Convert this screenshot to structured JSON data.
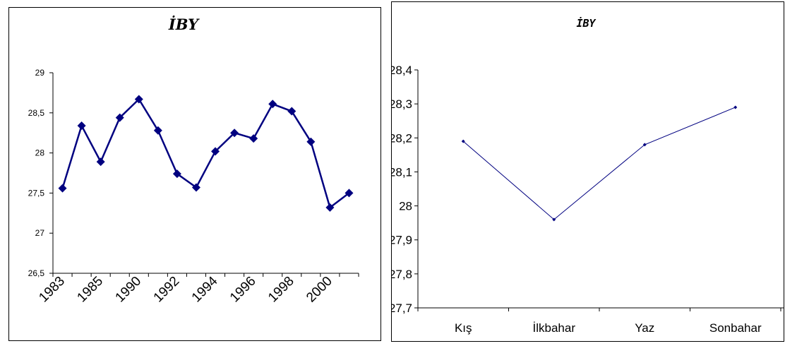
{
  "chart_data": [
    {
      "type": "line",
      "title": "İBY",
      "xlabel": "",
      "ylabel": "",
      "ylim": [
        26.5,
        29
      ],
      "yticks": [
        "26,5",
        "27",
        "27,5",
        "28",
        "28,5",
        "29"
      ],
      "x_tick_labels": [
        "1983",
        "1985",
        "1990",
        "1992",
        "1994",
        "1996",
        "1998",
        "2000"
      ],
      "grid": false,
      "legend": "none",
      "color": "#000080",
      "marker": "diamond",
      "series": [
        {
          "values": [
            27.56,
            28.34,
            27.89,
            28.44,
            28.67,
            28.28,
            27.74,
            27.57,
            28.02,
            28.25,
            28.18,
            28.61,
            28.52,
            28.14,
            27.32,
            27.5
          ]
        }
      ]
    },
    {
      "type": "line",
      "title": "İBY",
      "xlabel": "",
      "ylabel": "",
      "ylim": [
        27.7,
        28.4
      ],
      "yticks": [
        "27,7",
        "27,8",
        "27,9",
        "28",
        "28,1",
        "28,2",
        "28,3",
        "28,4"
      ],
      "categories": [
        "Kış",
        "İlkbahar",
        "Yaz",
        "Sonbahar"
      ],
      "grid": false,
      "legend": "none",
      "color": "#000080",
      "marker": "small-diamond",
      "series": [
        {
          "values": [
            28.19,
            27.96,
            28.18,
            28.29
          ]
        }
      ]
    }
  ]
}
